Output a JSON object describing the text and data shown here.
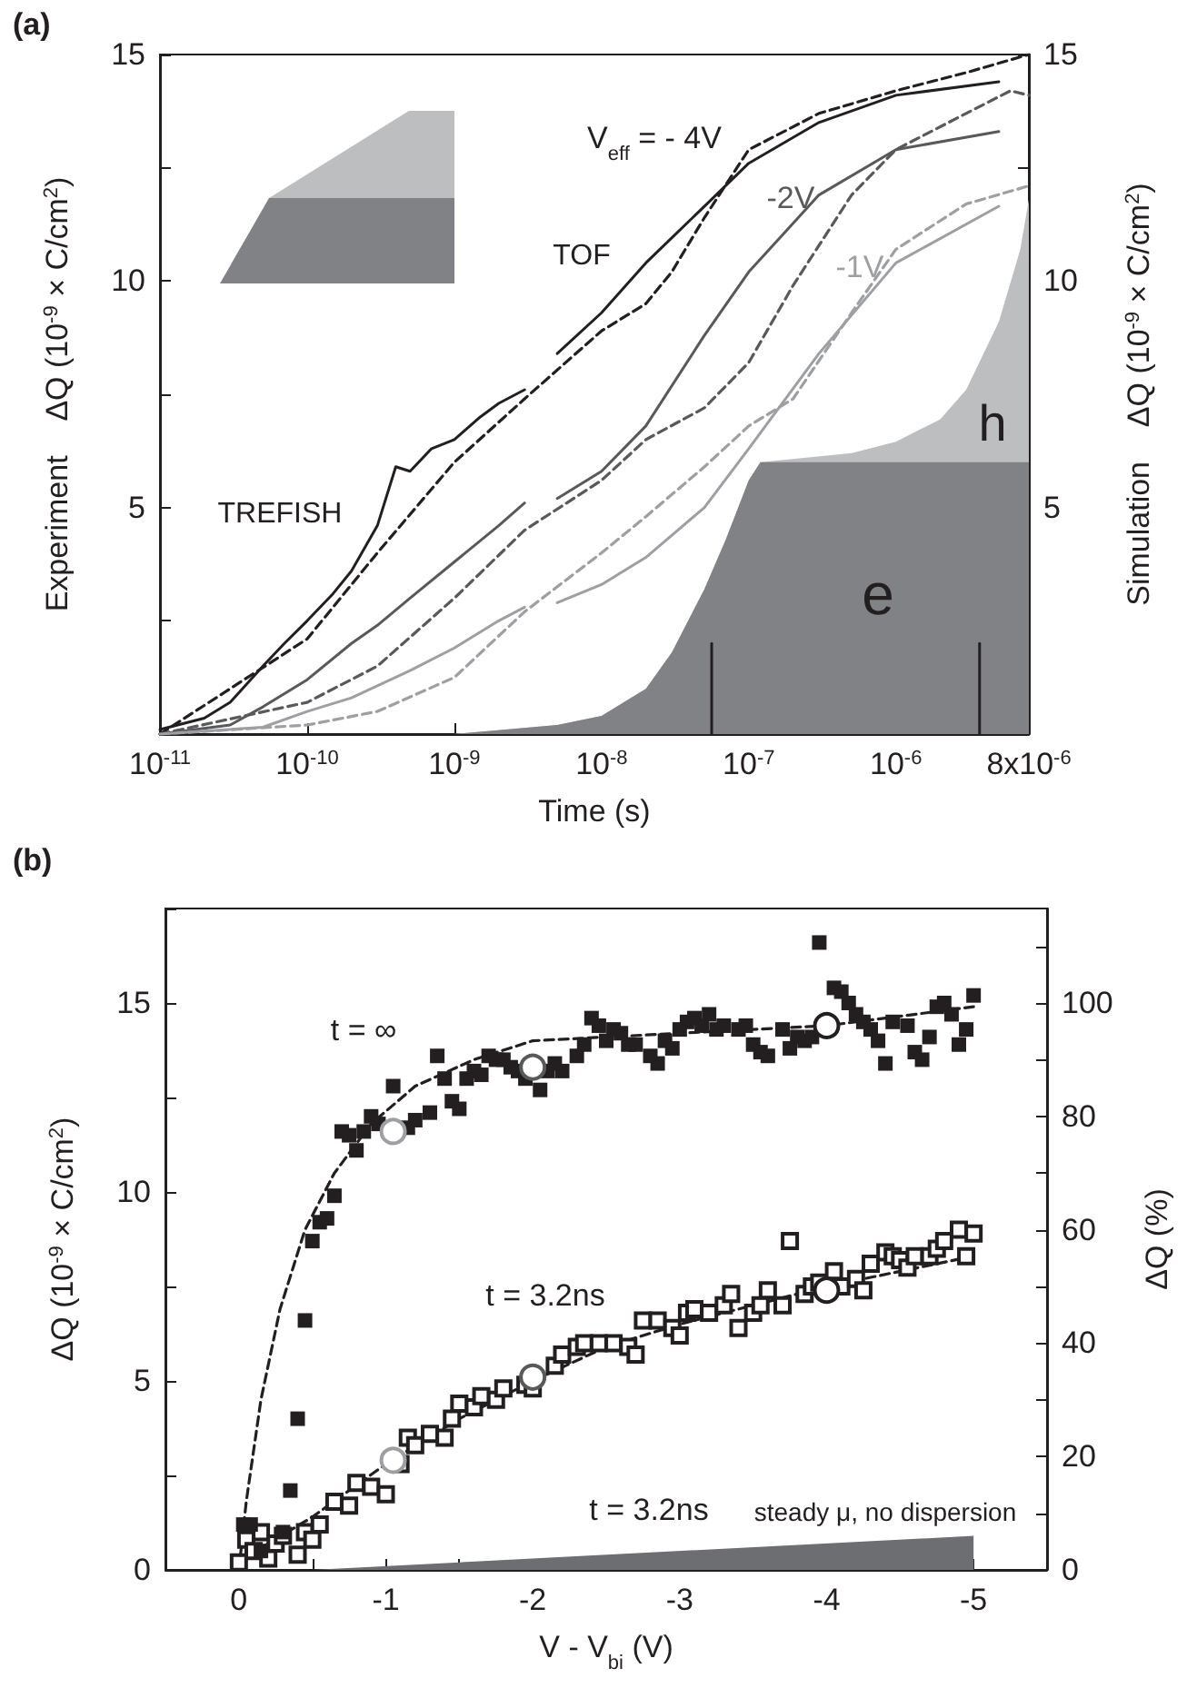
{
  "chart_data": [
    {
      "type": "line",
      "title": "(a)",
      "xlabel": "Time (s)",
      "ylabel": "Experiment    ΔQ (10$^{-9}$ × C/cm$^{2}$)",
      "y2label": "Simulation    ΔQ (10$^{-9}$ × C/cm$^{2}$)",
      "log": "x",
      "xlim": [
        1e-11,
        8e-06
      ],
      "xticks": [
        {
          "value": 1e-11,
          "label": "10$^{-11}$"
        },
        {
          "value": 1e-10,
          "label": "10$^{-10}$"
        },
        {
          "value": 1e-09,
          "label": "10$^{-9}$"
        },
        {
          "value": 1e-08,
          "label": "10$^{-8}$"
        },
        {
          "value": 1e-07,
          "label": "10$^{-7}$"
        },
        {
          "value": 1e-06,
          "label": "10$^{-6}$"
        },
        {
          "value": 8e-06,
          "label": "8x10$^{-6}$"
        }
      ],
      "ylim": [
        0,
        15
      ],
      "yticks": [
        {
          "value": 0,
          "label": null
        },
        {
          "value": 2.5,
          "label": null
        },
        5,
        {
          "value": 7.5,
          "label": null
        },
        10,
        {
          "value": 12.5,
          "label": null
        },
        15
      ],
      "y2lim": [
        0,
        15
      ],
      "y2ticks": [
        {
          "value": 0,
          "label": null
        },
        {
          "value": 2.5,
          "label": null
        },
        5,
        {
          "value": 7.5,
          "label": null
        },
        10,
        {
          "value": 12.5,
          "label": null
        },
        15
      ],
      "marker": "none",
      "stacked": true,
      "series": [
        {
          "type": "area",
          "color": "#808285",
          "x": [
            1e-09,
            5e-09,
            1e-08,
            2e-08,
            3e-08,
            5e-08,
            7e-08,
            1e-07,
            1.2e-07,
            5e-07,
            1e-06,
            2e-06,
            3e-06,
            5e-06,
            7e-06,
            8e-06
          ],
          "values": [
            0,
            0.2,
            0.4,
            1.0,
            1.8,
            3.2,
            4.3,
            5.6,
            6,
            6,
            6,
            6,
            6,
            6,
            6,
            6
          ]
        },
        {
          "type": "area",
          "color": "#bcbec0",
          "x": [
            1e-09,
            5e-09,
            1e-08,
            2e-08,
            3e-08,
            5e-08,
            7e-08,
            1e-07,
            1.2e-07,
            5e-07,
            1e-06,
            2e-06,
            3e-06,
            5e-06,
            7e-06,
            8e-06
          ],
          "values": [
            0,
            0,
            0,
            0,
            0,
            0,
            0,
            0,
            0,
            0.2,
            0.45,
            0.95,
            1.6,
            3.1,
            4.7,
            5.8
          ]
        },
        {
          "color": "#231f20",
          "x": [
            1e-11,
            2e-11,
            3e-11,
            5e-11,
            7e-11,
            1e-10,
            1.5e-10,
            2e-10,
            3e-10,
            4e-10,
            5e-10,
            7e-10,
            1e-09,
            1.5e-09,
            2e-09,
            3e-09
          ],
          "values": [
            0.1,
            0.35,
            0.7,
            1.5,
            2.0,
            2.5,
            3.1,
            3.6,
            4.6,
            5.9,
            5.8,
            6.3,
            6.5,
            7.0,
            7.3,
            7.6
          ]
        },
        {
          "color": "#58595b",
          "x": [
            1e-11,
            3e-11,
            5e-11,
            1e-10,
            2e-10,
            3e-10,
            5e-10,
            1e-09,
            2e-09,
            3e-09
          ],
          "values": [
            0,
            0.2,
            0.6,
            1.2,
            2.0,
            2.4,
            3.0,
            3.8,
            4.6,
            5.1
          ]
        },
        {
          "color": "#9d9fa2",
          "x": [
            1e-11,
            5e-11,
            1e-10,
            2e-10,
            5e-10,
            1e-09,
            2e-09,
            3e-09
          ],
          "values": [
            0,
            0.15,
            0.5,
            0.8,
            1.4,
            1.9,
            2.5,
            2.8
          ]
        },
        {
          "color": "#231f20",
          "x": [
            5e-09,
            1e-08,
            2e-08,
            5e-08,
            1e-07,
            3e-07,
            1e-06,
            5e-06
          ],
          "values": [
            8.4,
            9.3,
            10.4,
            11.65,
            12.6,
            13.5,
            14.1,
            14.4
          ]
        },
        {
          "color": "#58595b",
          "x": [
            5e-09,
            1e-08,
            2e-08,
            5e-08,
            1e-07,
            3e-07,
            1e-06,
            5e-06
          ],
          "values": [
            5.2,
            5.8,
            6.8,
            8.8,
            10.2,
            11.9,
            12.9,
            13.3
          ]
        },
        {
          "color": "#9d9fa2",
          "x": [
            5e-09,
            1e-08,
            2e-08,
            5e-08,
            1e-07,
            3e-07,
            1e-06,
            5e-06
          ],
          "values": [
            2.9,
            3.3,
            3.9,
            5.0,
            6.3,
            8.4,
            10.4,
            11.65
          ]
        },
        {
          "color": "#231f20",
          "line_style": "dashed",
          "x": [
            1e-11,
            1e-10,
            3e-10,
            1e-09,
            3e-09,
            1e-08,
            2e-08,
            3e-08,
            5e-08,
            1e-07,
            3e-07,
            1e-06,
            3e-06,
            8e-06
          ],
          "values": [
            0,
            2.1,
            4.0,
            6.0,
            7.4,
            8.9,
            9.5,
            10.2,
            11.4,
            12.9,
            13.7,
            14.2,
            14.6,
            15
          ]
        },
        {
          "color": "#58595b",
          "line_style": "dashed",
          "x": [
            1e-11,
            1e-10,
            3e-10,
            1e-09,
            3e-09,
            1e-08,
            2e-08,
            5e-08,
            1e-07,
            2e-07,
            5e-07,
            1e-06,
            3e-06,
            6e-06,
            8e-06
          ],
          "values": [
            0,
            0.7,
            1.5,
            3.0,
            4.5,
            5.6,
            6.5,
            7.2,
            8.2,
            9.9,
            11.9,
            12.9,
            13.7,
            14.2,
            14.1
          ]
        },
        {
          "color": "#9d9fa2",
          "line_style": "dashed",
          "x": [
            1e-11,
            1e-10,
            3e-10,
            1e-09,
            3e-09,
            1e-08,
            2e-08,
            5e-08,
            1e-07,
            2e-07,
            5e-07,
            1e-06,
            3e-06,
            8e-06
          ],
          "values": [
            0,
            0.2,
            0.5,
            1.25,
            2.7,
            4.0,
            4.8,
            5.9,
            6.8,
            7.4,
            9.3,
            10.7,
            11.7,
            12.1
          ]
        },
        {
          "color": "#231f20",
          "x": [
            5.6e-08,
            5.6e-08
          ],
          "values": [
            0,
            2
          ]
        },
        {
          "color": "#231f20",
          "x": [
            3.7e-06,
            3.7e-06
          ],
          "values": [
            0,
            2
          ]
        }
      ],
      "annotations": [
        "V$_{eff}$ = - 4V",
        "-2V",
        "-1V",
        "TOF",
        "TREFISH",
        "h",
        "e"
      ]
    },
    {
      "type": "scatter",
      "title": "(b)",
      "xlabel": "V - V$_{bi}$ (V)",
      "ylabel": "ΔQ (10$^{-9}$ × C/cm$^{2}$)",
      "y2label": "ΔQ (%)",
      "xlim": [
        0.5,
        -5.5
      ],
      "xticks": [
        {
          "value": 0.5,
          "label": null
        },
        0,
        {
          "value": -0.5,
          "label": null
        },
        -1,
        {
          "value": -1.5,
          "label": null
        },
        -2,
        {
          "value": -2.5,
          "label": null
        },
        -3,
        {
          "value": -3.5,
          "label": null
        },
        -4,
        {
          "value": -4.5,
          "label": null
        },
        -5,
        {
          "value": -5.5,
          "label": null
        }
      ],
      "ylim": [
        0,
        17.5
      ],
      "yticks": [
        0,
        {
          "value": 2.5,
          "label": null
        },
        5,
        {
          "value": 7.5,
          "label": null
        },
        10,
        {
          "value": 12.5,
          "label": null
        },
        15,
        {
          "value": 17.5,
          "label": null
        }
      ],
      "y2lim": [
        0,
        116.7
      ],
      "y2ticks": [
        0,
        {
          "value": 10,
          "label": null
        },
        20,
        {
          "value": 30,
          "label": null
        },
        40,
        {
          "value": 50,
          "label": null
        },
        60,
        {
          "value": 70,
          "label": null
        },
        80,
        {
          "value": 90,
          "label": null
        },
        100,
        {
          "value": 110,
          "label": null
        }
      ],
      "series": [
        {
          "type": "area",
          "color": "#6d6e71",
          "marker": "none",
          "x": [
            -0.5,
            -5
          ],
          "values": [
            0,
            0.9
          ]
        },
        {
          "type": "line",
          "color": "#231f20",
          "line_style": "dashed",
          "marker": "none",
          "x": [
            0,
            -0.05,
            -0.15,
            -0.28,
            -0.45,
            -0.65,
            -0.9,
            -1.2,
            -1.6,
            -2.0,
            -2.5,
            -3.0,
            -4.0,
            -5.0
          ],
          "values": [
            0,
            1.8,
            4.5,
            6.9,
            9.0,
            10.5,
            11.8,
            12.8,
            13.5,
            14.0,
            14.1,
            14.2,
            14.4,
            14.9
          ]
        },
        {
          "type": "line",
          "color": "#231f20",
          "line_style": "dashed",
          "marker": "none",
          "x": [
            0,
            -0.2,
            -0.5,
            -1.0,
            -1.5,
            -2.0,
            -2.5,
            -3.0,
            -3.5,
            -4.0,
            -4.5,
            -5.0
          ],
          "values": [
            0.1,
            0.7,
            1.4,
            2.8,
            4.0,
            5.0,
            5.9,
            6.5,
            7.0,
            7.5,
            7.9,
            8.3
          ]
        },
        {
          "color": "#231f20",
          "marker": "square",
          "x": [
            -0.03,
            -0.08,
            -0.15,
            -0.3,
            -0.35,
            -0.4,
            -0.45,
            -0.5,
            -0.55,
            -0.6,
            -0.65,
            -0.7,
            -0.75,
            -0.8,
            -0.85,
            -0.9,
            -0.95,
            -1.05,
            -1.15,
            -1.2,
            -1.3,
            -1.35,
            -1.4,
            -1.45,
            -1.5,
            -1.55,
            -1.6,
            -1.65,
            -1.7,
            -1.75,
            -1.8,
            -1.85,
            -1.9,
            -1.95,
            -2.05,
            -2.1,
            -2.15,
            -2.2,
            -2.3,
            -2.35,
            -2.4,
            -2.45,
            -2.5,
            -2.55,
            -2.6,
            -2.65,
            -2.7,
            -2.8,
            -2.85,
            -2.9,
            -2.95,
            -3.0,
            -3.05,
            -3.1,
            -3.15,
            -3.2,
            -3.25,
            -3.3,
            -3.4,
            -3.45,
            -3.5,
            -3.55,
            -3.6,
            -3.7,
            -3.75,
            -3.8,
            -3.85,
            -3.9,
            -3.95,
            -4.05,
            -4.1,
            -4.15,
            -4.2,
            -4.25,
            -4.3,
            -4.35,
            -4.4,
            -4.45,
            -4.55,
            -4.6,
            -4.65,
            -4.7,
            -4.75,
            -4.8,
            -4.85,
            -4.9,
            -4.95,
            -5.0
          ],
          "values": [
            1.2,
            1.2,
            0.5,
            1.0,
            2.1,
            4.0,
            6.6,
            8.7,
            9.2,
            9.3,
            9.9,
            11.6,
            11.5,
            11.1,
            11.6,
            12.0,
            11.8,
            12.8,
            11.7,
            11.9,
            12.1,
            13.6,
            13.0,
            12.4,
            12.2,
            13.0,
            13.2,
            13.1,
            13.6,
            13.5,
            13.5,
            13.3,
            13.2,
            13.0,
            12.7,
            13.2,
            13.4,
            13.2,
            13.6,
            13.9,
            14.6,
            14.4,
            14.0,
            14.3,
            14.2,
            13.9,
            13.9,
            13.6,
            13.4,
            14.0,
            13.8,
            14.3,
            14.5,
            14.6,
            14.4,
            14.7,
            14.3,
            14.4,
            14.3,
            14.4,
            13.9,
            13.7,
            13.6,
            14.3,
            13.8,
            14.1,
            14.0,
            14.1,
            16.6,
            15.4,
            15.3,
            15.0,
            14.7,
            14.5,
            14.3,
            14.0,
            13.4,
            14.5,
            14.4,
            13.7,
            13.5,
            14.1,
            14.9,
            15.0,
            14.7,
            13.9,
            14.3,
            15.2
          ]
        },
        {
          "color": "#231f20",
          "marker": "square",
          "x": [
            0,
            -0.05,
            -0.1,
            -0.15,
            -0.2,
            -0.25,
            -0.3,
            -0.4,
            -0.45,
            -0.5,
            -0.55,
            -0.65,
            -0.75,
            -0.8,
            -0.9,
            -1.0,
            -1.1,
            -1.15,
            -1.2,
            -1.3,
            -1.4,
            -1.45,
            -1.5,
            -1.6,
            -1.65,
            -1.75,
            -1.8,
            -1.95,
            -2.0,
            -2.15,
            -2.2,
            -2.3,
            -2.35,
            -2.45,
            -2.55,
            -2.65,
            -2.7,
            -2.75,
            -2.85,
            -2.95,
            -3.0,
            -3.05,
            -3.1,
            -3.2,
            -3.3,
            -3.35,
            -3.4,
            -3.5,
            -3.55,
            -3.6,
            -3.7,
            -3.75,
            -3.85,
            -3.9,
            -3.95,
            -4.05,
            -4.1,
            -4.2,
            -4.25,
            -4.3,
            -4.4,
            -4.45,
            -4.5,
            -4.55,
            -4.6,
            -4.7,
            -4.75,
            -4.8,
            -4.9,
            -4.95,
            -5.0
          ],
          "values": [
            0.2,
            0.8,
            0.5,
            1.0,
            0.3,
            0.7,
            0.9,
            0.4,
            1.0,
            0.8,
            1.2,
            1.8,
            1.7,
            2.3,
            2.2,
            2.0,
            2.8,
            3.5,
            3.3,
            3.6,
            3.5,
            4.0,
            4.4,
            4.3,
            4.6,
            4.5,
            4.8,
            4.9,
            4.8,
            5.4,
            5.7,
            5.9,
            6.0,
            6.0,
            6.0,
            5.9,
            5.7,
            6.6,
            6.6,
            6.4,
            6.2,
            6.8,
            6.9,
            6.8,
            7.0,
            7.3,
            6.4,
            6.8,
            7.0,
            7.4,
            7.0,
            8.7,
            7.3,
            7.5,
            7.6,
            7.9,
            7.5,
            7.7,
            7.4,
            8.1,
            8.4,
            8.3,
            8.2,
            8.0,
            8.3,
            8.3,
            8.5,
            8.7,
            9.0,
            8.3,
            8.9
          ]
        },
        {
          "color": "#9d9fa2",
          "marker": "circle",
          "x": [
            -1.05,
            -1.05
          ],
          "values": [
            11.6,
            2.9
          ]
        },
        {
          "color": "#58595b",
          "marker": "circle",
          "x": [
            -2.0,
            -2.0
          ],
          "values": [
            13.3,
            5.1
          ]
        },
        {
          "color": "#231f20",
          "marker": "circle",
          "x": [
            -4.0,
            -4.0
          ],
          "values": [
            14.4,
            7.4
          ]
        }
      ],
      "annotations": [
        "t = ∞",
        "t = 3.2ns",
        "t = 3.2ns",
        "steady μ, no dispersion"
      ]
    }
  ]
}
